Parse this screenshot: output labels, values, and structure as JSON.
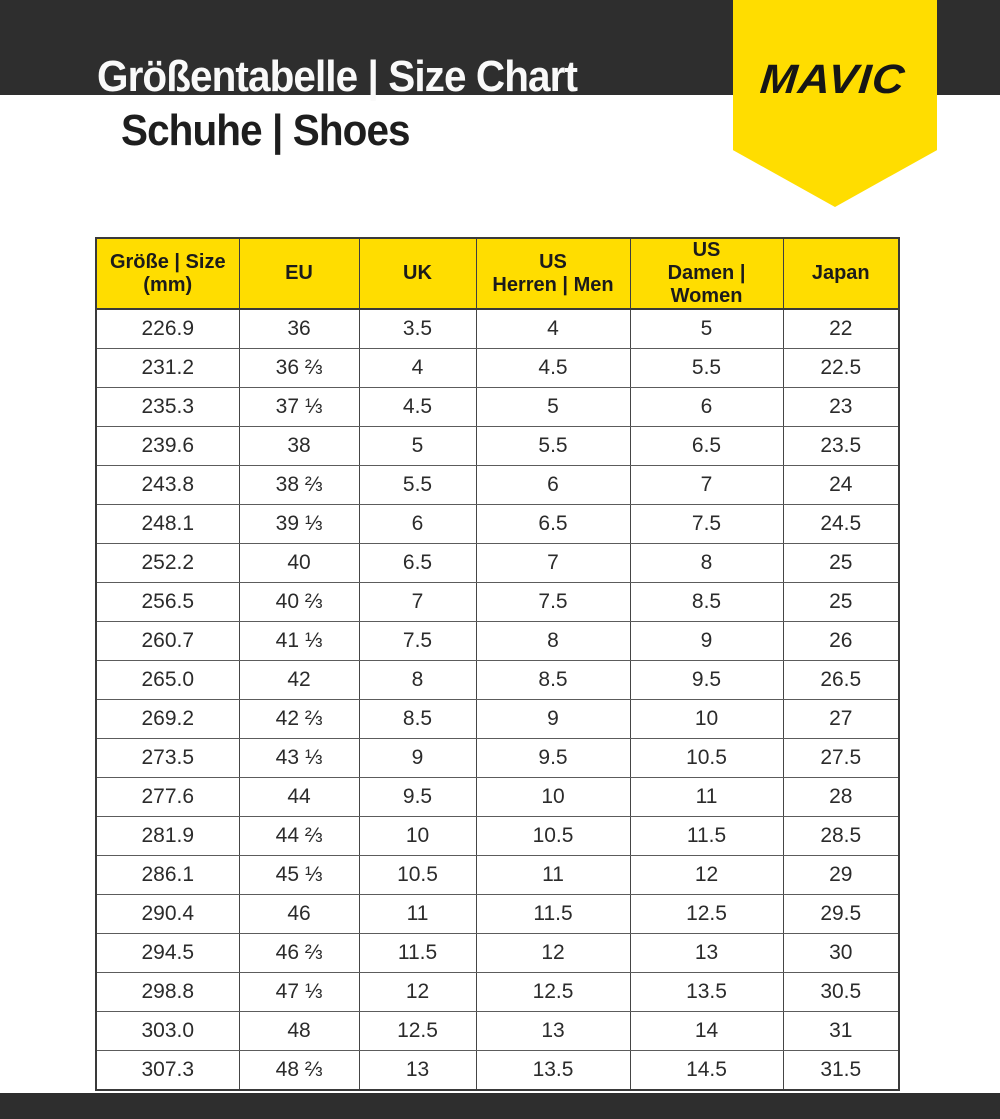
{
  "header": {
    "title": "Größentabelle | Size Chart",
    "subtitle": "Schuhe | Shoes",
    "brand": "MAVIC",
    "bar_color": "#2e2e2e",
    "ribbon_color": "#ffdd00"
  },
  "table": {
    "header_bg": "#ffdd00",
    "columns": [
      {
        "key": "mm",
        "line1": "Größe | Size",
        "line2": "(mm)"
      },
      {
        "key": "eu",
        "line1": "EU",
        "line2": ""
      },
      {
        "key": "uk",
        "line1": "UK",
        "line2": ""
      },
      {
        "key": "us-men",
        "line1": "US",
        "line2": "Herren | Men"
      },
      {
        "key": "us-women",
        "line1": "US",
        "line2": "Damen | Women"
      },
      {
        "key": "japan",
        "line1": "Japan",
        "line2": ""
      }
    ],
    "rows": [
      [
        "226.9",
        "36",
        "3.5",
        "4",
        "5",
        "22"
      ],
      [
        "231.2",
        "36 ⅔",
        "4",
        "4.5",
        "5.5",
        "22.5"
      ],
      [
        "235.3",
        "37 ⅓",
        "4.5",
        "5",
        "6",
        "23"
      ],
      [
        "239.6",
        "38",
        "5",
        "5.5",
        "6.5",
        "23.5"
      ],
      [
        "243.8",
        "38 ⅔",
        "5.5",
        "6",
        "7",
        "24"
      ],
      [
        "248.1",
        "39 ⅓",
        "6",
        "6.5",
        "7.5",
        "24.5"
      ],
      [
        "252.2",
        "40",
        "6.5",
        "7",
        "8",
        "25"
      ],
      [
        "256.5",
        "40 ⅔",
        "7",
        "7.5",
        "8.5",
        "25"
      ],
      [
        "260.7",
        "41 ⅓",
        "7.5",
        "8",
        "9",
        "26"
      ],
      [
        "265.0",
        "42",
        "8",
        "8.5",
        "9.5",
        "26.5"
      ],
      [
        "269.2",
        "42 ⅔",
        "8.5",
        "9",
        "10",
        "27"
      ],
      [
        "273.5",
        "43 ⅓",
        "9",
        "9.5",
        "10.5",
        "27.5"
      ],
      [
        "277.6",
        "44",
        "9.5",
        "10",
        "11",
        "28"
      ],
      [
        "281.9",
        "44 ⅔",
        "10",
        "10.5",
        "11.5",
        "28.5"
      ],
      [
        "286.1",
        "45 ⅓",
        "10.5",
        "11",
        "12",
        "29"
      ],
      [
        "290.4",
        "46",
        "11",
        "11.5",
        "12.5",
        "29.5"
      ],
      [
        "294.5",
        "46 ⅔",
        "11.5",
        "12",
        "13",
        "30"
      ],
      [
        "298.8",
        "47 ⅓",
        "12",
        "12.5",
        "13.5",
        "30.5"
      ],
      [
        "303.0",
        "48",
        "12.5",
        "13",
        "14",
        "31"
      ],
      [
        "307.3",
        "48 ⅔",
        "13",
        "13.5",
        "14.5",
        "31.5"
      ]
    ]
  },
  "footer": {
    "bar_color": "#2e2e2e"
  }
}
